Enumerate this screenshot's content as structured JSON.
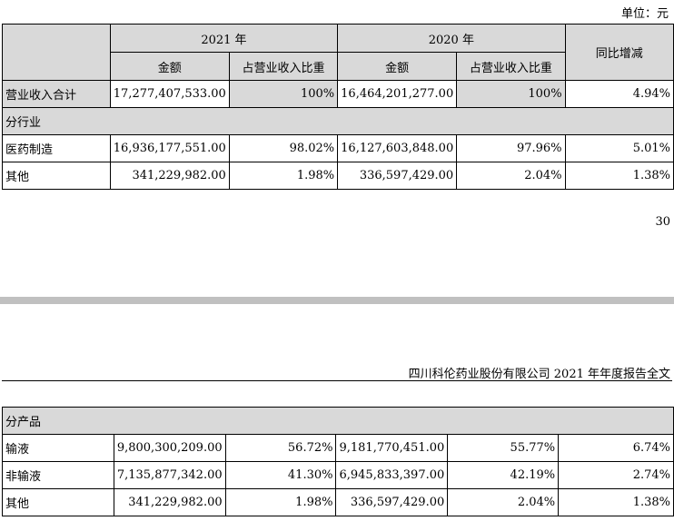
{
  "unit_label": "单位：元",
  "table1": {
    "header": {
      "year_2021": "2021 年",
      "year_2020": "2020 年",
      "amount": "金额",
      "ratio": "占营业收入比重",
      "change": "同比增减"
    },
    "total": {
      "label": "营业收入合计",
      "amount_2021": "17,277,407,533.00",
      "ratio_2021": "100%",
      "amount_2020": "16,464,201,277.00",
      "ratio_2020": "100%",
      "change": "4.94%"
    },
    "section_label": "分行业",
    "rows": [
      {
        "label": "医药制造",
        "amount_2021": "16,936,177,551.00",
        "ratio_2021": "98.02%",
        "amount_2020": "16,127,603,848.00",
        "ratio_2020": "97.96%",
        "change": "5.01%"
      },
      {
        "label": "其他",
        "amount_2021": "341,229,982.00",
        "ratio_2021": "1.98%",
        "amount_2020": "336,597,429.00",
        "ratio_2020": "2.04%",
        "change": "1.38%"
      }
    ]
  },
  "page_number": "30",
  "doc_header": "四川科伦药业股份有限公司 2021 年年度报告全文",
  "table2": {
    "section_label": "分产品",
    "rows": [
      {
        "label": "输液",
        "amount_2021": "9,800,300,209.00",
        "ratio_2021": "56.72%",
        "amount_2020": "9,181,770,451.00",
        "ratio_2020": "55.77%",
        "change": "6.74%"
      },
      {
        "label": "非输液",
        "amount_2021": "7,135,877,342.00",
        "ratio_2021": "41.30%",
        "amount_2020": "6,945,833,397.00",
        "ratio_2020": "42.19%",
        "change": "2.74%"
      },
      {
        "label": "其他",
        "amount_2021": "341,229,982.00",
        "ratio_2021": "1.98%",
        "amount_2020": "336,597,429.00",
        "ratio_2020": "2.04%",
        "change": "1.38%"
      }
    ]
  }
}
